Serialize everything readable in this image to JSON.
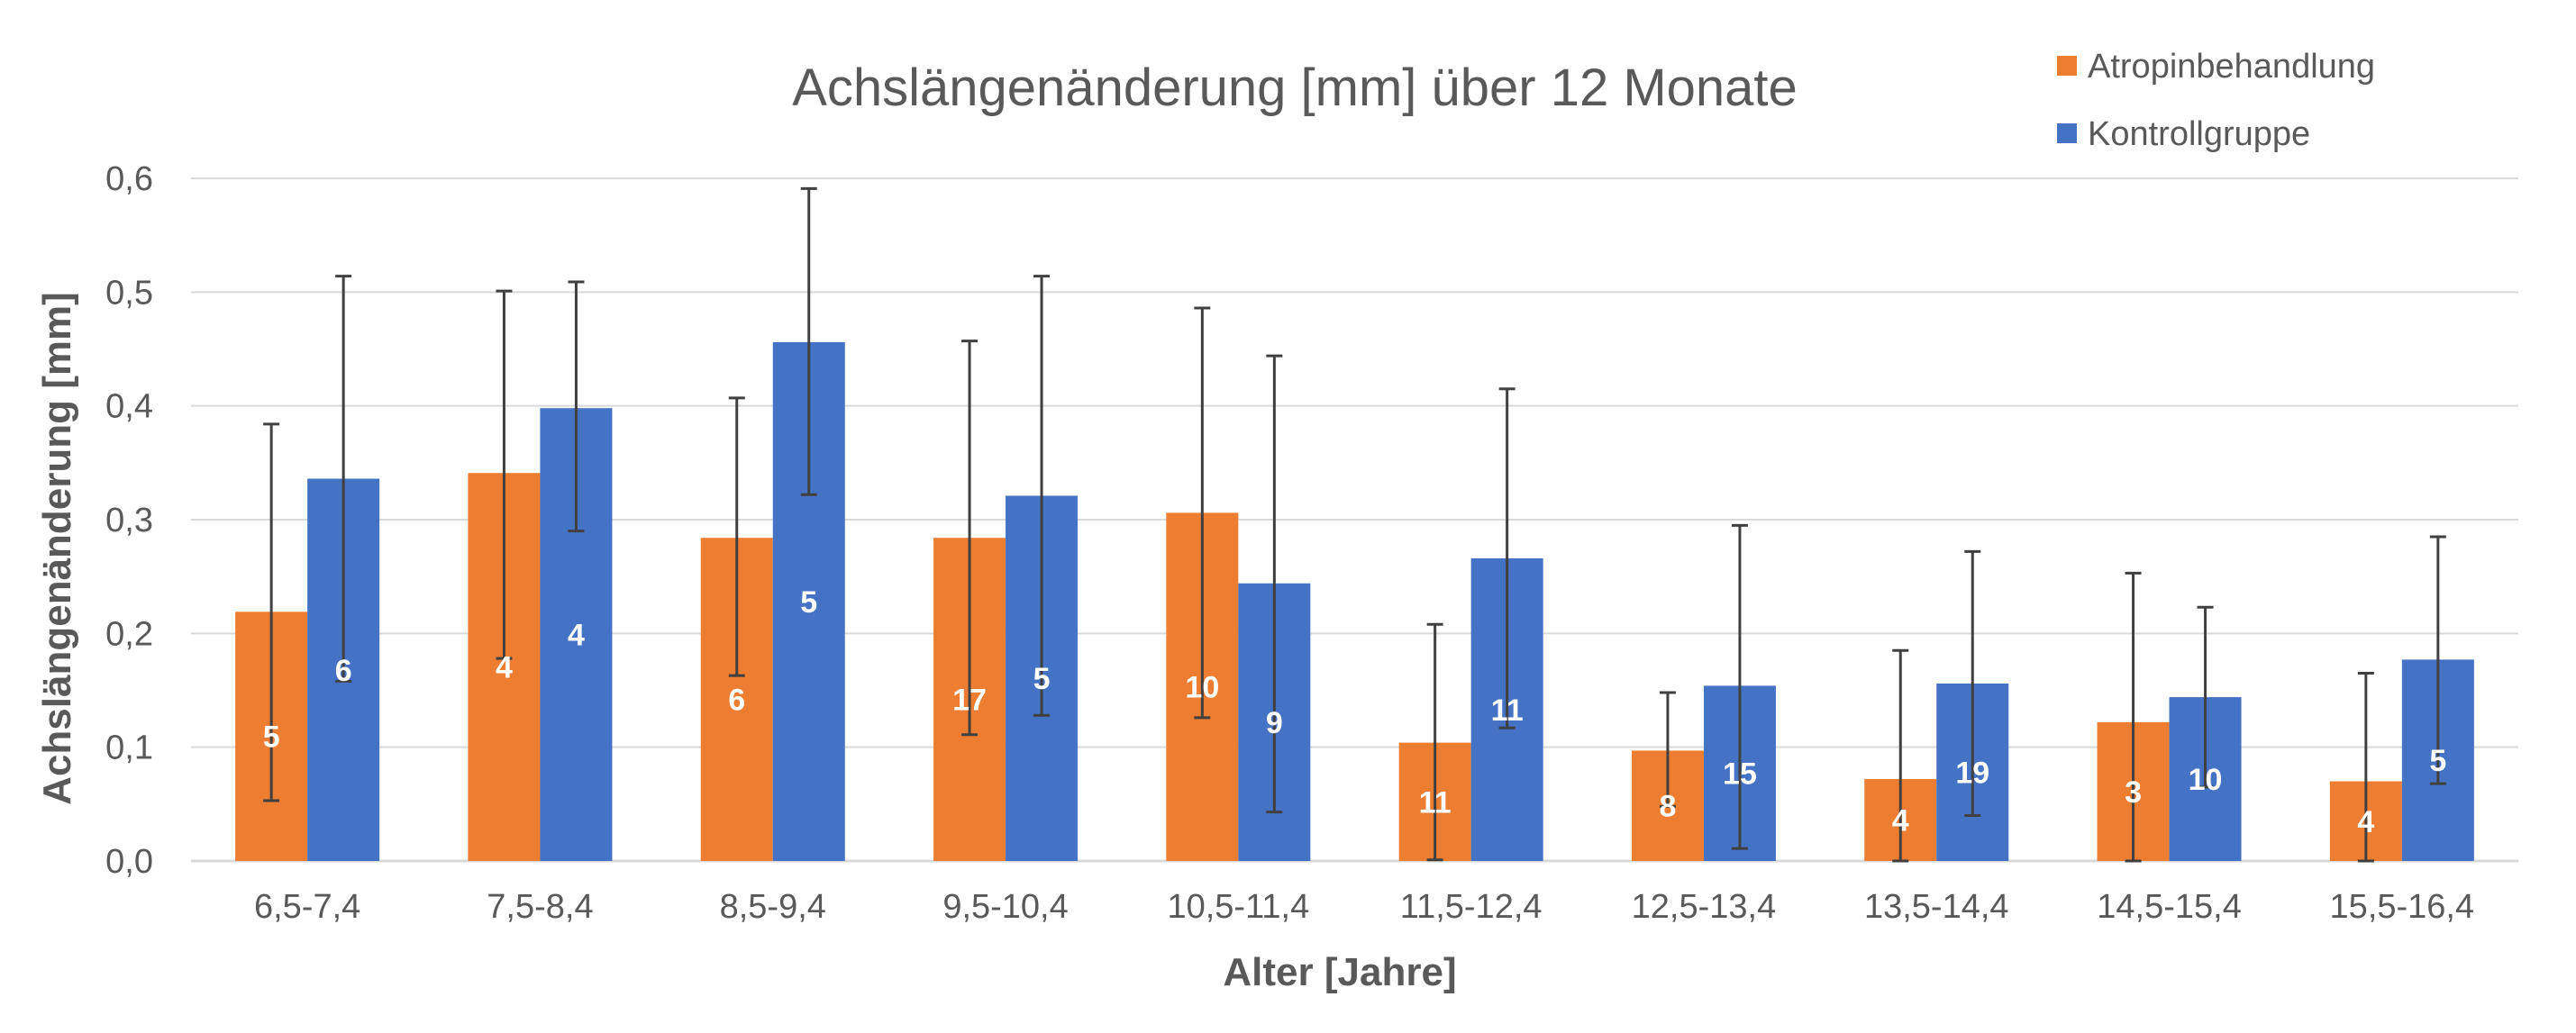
{
  "chart_data": {
    "type": "bar",
    "title": "Achslängenänderung [mm] über 12 Monate",
    "xlabel": "Alter [Jahre]",
    "ylabel": "Achslängenänderung [mm]",
    "ylim": [
      0,
      0.6
    ],
    "yticks": [
      "0,0",
      "0,1",
      "0,2",
      "0,3",
      "0,4",
      "0,5",
      "0,6"
    ],
    "grid": true,
    "legend_position": "top-right",
    "categories": [
      "6,5-7,4",
      "7,5-8,4",
      "8,5-9,4",
      "9,5-10,4",
      "10,5-11,4",
      "11,5-12,4",
      "12,5-13,4",
      "13,5-14,4",
      "14,5-15,4",
      "15,5-16,4"
    ],
    "series": [
      {
        "name": "Atropinbehandlung",
        "color": "#ED7D31",
        "values": [
          0.219,
          0.341,
          0.284,
          0.284,
          0.306,
          0.104,
          0.097,
          0.072,
          0.122,
          0.07
        ],
        "error_low": [
          0.053,
          0.178,
          0.163,
          0.111,
          0.126,
          0.001,
          0.048,
          0.0,
          0.0,
          0.0
        ],
        "error_high": [
          0.384,
          0.501,
          0.407,
          0.457,
          0.486,
          0.208,
          0.148,
          0.185,
          0.253,
          0.165
        ],
        "labels": [
          "5",
          "4",
          "6",
          "17",
          "10",
          "11",
          "8",
          "4",
          "3",
          "4"
        ]
      },
      {
        "name": "Kontrollgruppe",
        "color": "#4472C4",
        "values": [
          0.336,
          0.398,
          0.456,
          0.321,
          0.244,
          0.266,
          0.154,
          0.156,
          0.144,
          0.177
        ],
        "error_low": [
          0.158,
          0.29,
          0.322,
          0.128,
          0.043,
          0.117,
          0.011,
          0.04,
          0.065,
          0.068
        ],
        "error_high": [
          0.514,
          0.509,
          0.591,
          0.514,
          0.444,
          0.415,
          0.295,
          0.272,
          0.223,
          0.285
        ],
        "labels": [
          "6",
          "4",
          "5",
          "5",
          "9",
          "11",
          "15",
          "19",
          "10",
          "5"
        ]
      }
    ]
  }
}
